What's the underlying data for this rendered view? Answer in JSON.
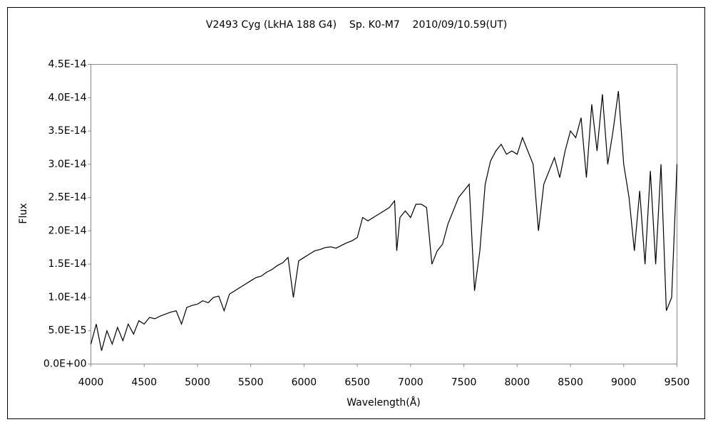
{
  "chart_data": {
    "type": "line",
    "title": "V2493 Cyg (LkHA 188 G4)    Sp. K0-M7    2010/09/10.59(UT)",
    "x_label": "Wavelength(Å)",
    "y_label": "Flux",
    "x": [
      4000,
      4050,
      4100,
      4150,
      4200,
      4250,
      4300,
      4350,
      4400,
      4450,
      4500,
      4550,
      4600,
      4650,
      4700,
      4750,
      4800,
      4850,
      4900,
      4950,
      5000,
      5050,
      5100,
      5150,
      5200,
      5250,
      5300,
      5350,
      5400,
      5450,
      5500,
      5550,
      5600,
      5650,
      5700,
      5750,
      5800,
      5850,
      5900,
      5950,
      6000,
      6050,
      6100,
      6150,
      6200,
      6250,
      6300,
      6350,
      6400,
      6450,
      6500,
      6550,
      6600,
      6650,
      6700,
      6750,
      6800,
      6850,
      6870,
      6900,
      6950,
      7000,
      7050,
      7100,
      7150,
      7200,
      7250,
      7300,
      7350,
      7400,
      7450,
      7500,
      7550,
      7600,
      7650,
      7700,
      7750,
      7800,
      7850,
      7900,
      7950,
      8000,
      8050,
      8100,
      8150,
      8200,
      8250,
      8300,
      8350,
      8400,
      8450,
      8500,
      8550,
      8600,
      8650,
      8700,
      8750,
      8800,
      8850,
      8900,
      8950,
      9000,
      9050,
      9100,
      9150,
      9200,
      9250,
      9300,
      9350,
      9400,
      9450,
      9500
    ],
    "series": [
      {
        "name": "Flux",
        "color": "#000000",
        "values": [
          3e-15,
          6e-15,
          2e-15,
          5e-15,
          3e-15,
          5.5e-15,
          3.5e-15,
          6e-15,
          4.5e-15,
          6.5e-15,
          6e-15,
          7e-15,
          6.8e-15,
          7.2e-15,
          7.5e-15,
          7.8e-15,
          8e-15,
          6e-15,
          8.5e-15,
          8.8e-15,
          9e-15,
          9.5e-15,
          9.2e-15,
          1e-14,
          1.02e-14,
          8e-15,
          1.05e-14,
          1.1e-14,
          1.15e-14,
          1.2e-14,
          1.25e-14,
          1.3e-14,
          1.32e-14,
          1.38e-14,
          1.42e-14,
          1.48e-14,
          1.52e-14,
          1.6e-14,
          1e-14,
          1.55e-14,
          1.6e-14,
          1.65e-14,
          1.7e-14,
          1.72e-14,
          1.75e-14,
          1.76e-14,
          1.74e-14,
          1.78e-14,
          1.82e-14,
          1.85e-14,
          1.9e-14,
          2.2e-14,
          2.15e-14,
          2.2e-14,
          2.25e-14,
          2.3e-14,
          2.35e-14,
          2.45e-14,
          1.7e-14,
          2.2e-14,
          2.3e-14,
          2.2e-14,
          2.4e-14,
          2.4e-14,
          2.35e-14,
          1.5e-14,
          1.7e-14,
          1.8e-14,
          2.1e-14,
          2.3e-14,
          2.5e-14,
          2.6e-14,
          2.7e-14,
          1.1e-14,
          1.7e-14,
          2.7e-14,
          3.05e-14,
          3.2e-14,
          3.3e-14,
          3.15e-14,
          3.2e-14,
          3.15e-14,
          3.4e-14,
          3.2e-14,
          3e-14,
          2e-14,
          2.7e-14,
          2.9e-14,
          3.1e-14,
          2.8e-14,
          3.2e-14,
          3.5e-14,
          3.4e-14,
          3.7e-14,
          2.8e-14,
          3.9e-14,
          3.2e-14,
          4.05e-14,
          3e-14,
          3.5e-14,
          4.1e-14,
          3e-14,
          2.5e-14,
          1.7e-14,
          2.6e-14,
          1.5e-14,
          2.9e-14,
          1.5e-14,
          3e-14,
          8e-15,
          1e-14,
          3e-14
        ]
      }
    ],
    "xlim": [
      4000,
      9500
    ],
    "xticks": [
      4000,
      4500,
      5000,
      5500,
      6000,
      6500,
      7000,
      7500,
      8000,
      8500,
      9000,
      9500
    ],
    "ylim": [
      0,
      4.5e-14
    ],
    "yticks": [
      {
        "value": 0,
        "label": "0.0E+00"
      },
      {
        "value": 5e-15,
        "label": "5.0E-15"
      },
      {
        "value": 1e-14,
        "label": "1.0E-14"
      },
      {
        "value": 1.5e-14,
        "label": "1.5E-14"
      },
      {
        "value": 2e-14,
        "label": "2.0E-14"
      },
      {
        "value": 2.5e-14,
        "label": "2.5E-14"
      },
      {
        "value": 3e-14,
        "label": "3.0E-14"
      },
      {
        "value": 3.5e-14,
        "label": "3.5E-14"
      },
      {
        "value": 4e-14,
        "label": "4.0E-14"
      },
      {
        "value": 4.5e-14,
        "label": "4.5E-14"
      }
    ],
    "grid": false
  }
}
